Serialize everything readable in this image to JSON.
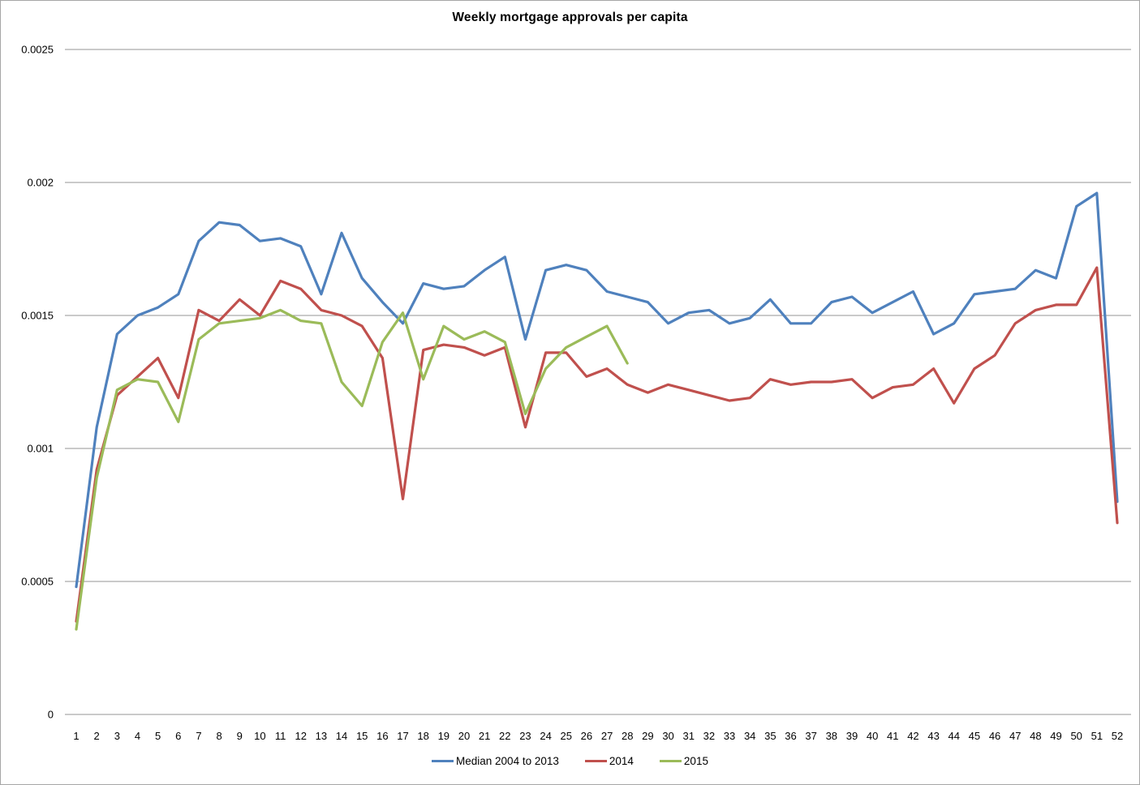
{
  "chart_data": {
    "type": "line",
    "title": "Weekly mortgage approvals per capita",
    "xlabel": "",
    "ylabel": "",
    "x": [
      1,
      2,
      3,
      4,
      5,
      6,
      7,
      8,
      9,
      10,
      11,
      12,
      13,
      14,
      15,
      16,
      17,
      18,
      19,
      20,
      21,
      22,
      23,
      24,
      25,
      26,
      27,
      28,
      29,
      30,
      31,
      32,
      33,
      34,
      35,
      36,
      37,
      38,
      39,
      40,
      41,
      42,
      43,
      44,
      45,
      46,
      47,
      48,
      49,
      50,
      51,
      52
    ],
    "ylim": [
      0,
      0.0025
    ],
    "y_ticks": [
      0,
      0.0005,
      0.001,
      0.0015,
      0.002,
      0.0025
    ],
    "y_tick_labels": [
      "0",
      "0.0005",
      "0.001",
      "0.0015",
      "0.002",
      "0.0025"
    ],
    "grid": "horizontal",
    "gridline_color": "#949494",
    "legend_position": "bottom",
    "series": [
      {
        "name": "Median 2004 to 2013",
        "color": "#4F81BD",
        "values": [
          0.00048,
          0.00108,
          0.00143,
          0.0015,
          0.00153,
          0.00158,
          0.00178,
          0.00185,
          0.00184,
          0.00178,
          0.00179,
          0.00176,
          0.00158,
          0.00181,
          0.00164,
          0.00155,
          0.00147,
          0.00162,
          0.0016,
          0.00161,
          0.00167,
          0.00172,
          0.00141,
          0.00167,
          0.00169,
          0.00167,
          0.00159,
          0.00157,
          0.00155,
          0.00147,
          0.00151,
          0.00152,
          0.00147,
          0.00149,
          0.00156,
          0.00147,
          0.00147,
          0.00155,
          0.00157,
          0.00151,
          0.00155,
          0.00159,
          0.00143,
          0.00147,
          0.00158,
          0.00159,
          0.0016,
          0.00167,
          0.00164,
          0.00191,
          0.00196,
          0.0008
        ]
      },
      {
        "name": "2014",
        "color": "#C0504D",
        "values": [
          0.00035,
          0.00092,
          0.0012,
          0.00127,
          0.00134,
          0.00119,
          0.00152,
          0.00148,
          0.00156,
          0.0015,
          0.00163,
          0.0016,
          0.00152,
          0.0015,
          0.00146,
          0.00134,
          0.00081,
          0.00137,
          0.00139,
          0.00138,
          0.00135,
          0.00138,
          0.00108,
          0.00136,
          0.00136,
          0.00127,
          0.0013,
          0.00124,
          0.00121,
          0.00124,
          0.00122,
          0.0012,
          0.00118,
          0.00119,
          0.00126,
          0.00124,
          0.00125,
          0.00125,
          0.00126,
          0.00119,
          0.00123,
          0.00124,
          0.0013,
          0.00117,
          0.0013,
          0.00135,
          0.00147,
          0.00152,
          0.00154,
          0.00154,
          0.00168,
          0.00072
        ]
      },
      {
        "name": "2015",
        "color": "#9BBB59",
        "values": [
          0.00032,
          0.00089,
          0.00122,
          0.00126,
          0.00125,
          0.0011,
          0.00141,
          0.00147,
          0.00148,
          0.00149,
          0.00152,
          0.00148,
          0.00147,
          0.00125,
          0.00116,
          0.0014,
          0.00151,
          0.00126,
          0.00146,
          0.00141,
          0.00144,
          0.0014,
          0.00113,
          0.0013,
          0.00138,
          0.00142,
          0.00146,
          0.00132
        ]
      }
    ]
  }
}
